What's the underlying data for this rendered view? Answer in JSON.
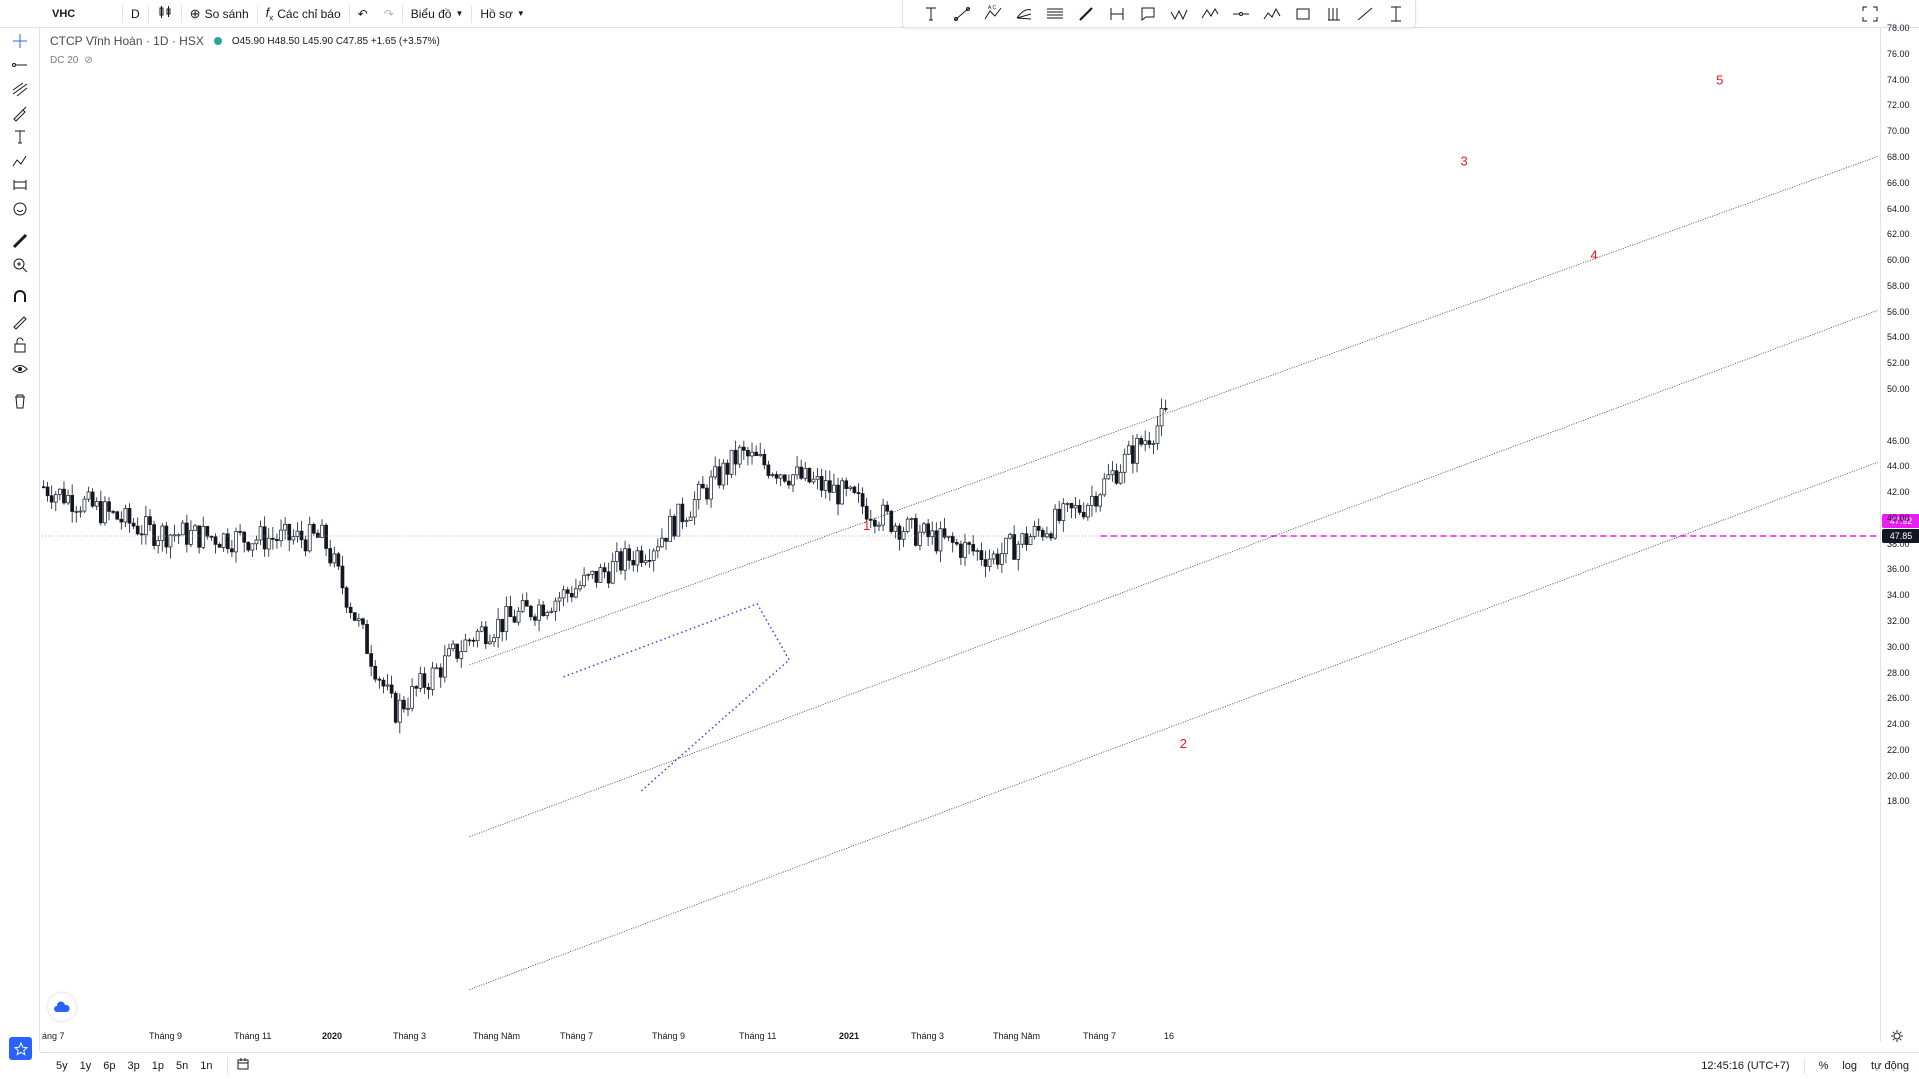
{
  "toolbar": {
    "symbol": "VHC",
    "interval": "D",
    "compare_label": "So sánh",
    "indicators_label": "Các chỉ báo",
    "chart_label": "Biểu đồ",
    "profile_label": "Hồ sơ"
  },
  "legend": {
    "name": "CTCP Vĩnh Hoàn · 1D · HSX",
    "ohlc": "O45.90 H48.50 L45.90 C47.85 +1.65 (+3.57%)",
    "indicator": "DC 20"
  },
  "price_axis": {
    "labels": [
      "78.00",
      "76.00",
      "74.00",
      "72.00",
      "70.00",
      "68.00",
      "66.00",
      "64.00",
      "62.00",
      "60.00",
      "58.00",
      "56.00",
      "54.00",
      "52.00",
      "50.00",
      "46.00",
      "44.00",
      "42.00",
      "40.00",
      "38.00",
      "36.00",
      "34.00",
      "32.00",
      "30.00",
      "28.00",
      "26.00",
      "24.00",
      "22.00",
      "20.00",
      "18.00"
    ],
    "badge_high": "47.92",
    "badge_last": "47.85",
    "badge_high_color": "#e91ef0",
    "badge_last_color": "#131722"
  },
  "time_axis": {
    "labels": [
      "áng 7",
      "Tháng 9",
      "Tháng 11",
      "2020",
      "Tháng 3",
      "Tháng Năm",
      "Tháng 7",
      "Tháng 9",
      "Tháng 11",
      "2021",
      "Tháng 3",
      "Tháng Năm",
      "Tháng 7",
      "16"
    ]
  },
  "wave_labels": [
    "1",
    "2",
    "3",
    "4",
    "5"
  ],
  "bottom": {
    "ranges": [
      "5y",
      "1y",
      "6p",
      "3p",
      "1p",
      "5n",
      "1n"
    ],
    "time": "12:45:16 (UTC+7)",
    "percent": "%",
    "log": "log",
    "auto": "tự động"
  },
  "colors": {
    "candle": "#131722",
    "channel": "#131722",
    "dotted_pattern": "#3f3fdd",
    "resistance": "#e91ef0",
    "wave_label": "#e31b1b"
  },
  "chart_data": {
    "type": "candlestick",
    "symbol": "VHC",
    "ylim": [
      17,
      79
    ],
    "current_price": 47.85,
    "resistance_level": 47.92,
    "close_path": {
      "x": [
        "áng 7",
        "Tháng 9",
        "Tháng 11",
        "2020",
        "Tháng 3",
        "Tháng Năm",
        "Tháng 7",
        "Tháng 9",
        "Tháng 11",
        "2021",
        "Tháng 3",
        "Tháng Năm",
        "Tháng 7",
        "16"
      ],
      "y": [
        42.5,
        39,
        38.5,
        38.5,
        25,
        31,
        34,
        38,
        45,
        42,
        39,
        37,
        41,
        47.85
      ]
    }
  }
}
